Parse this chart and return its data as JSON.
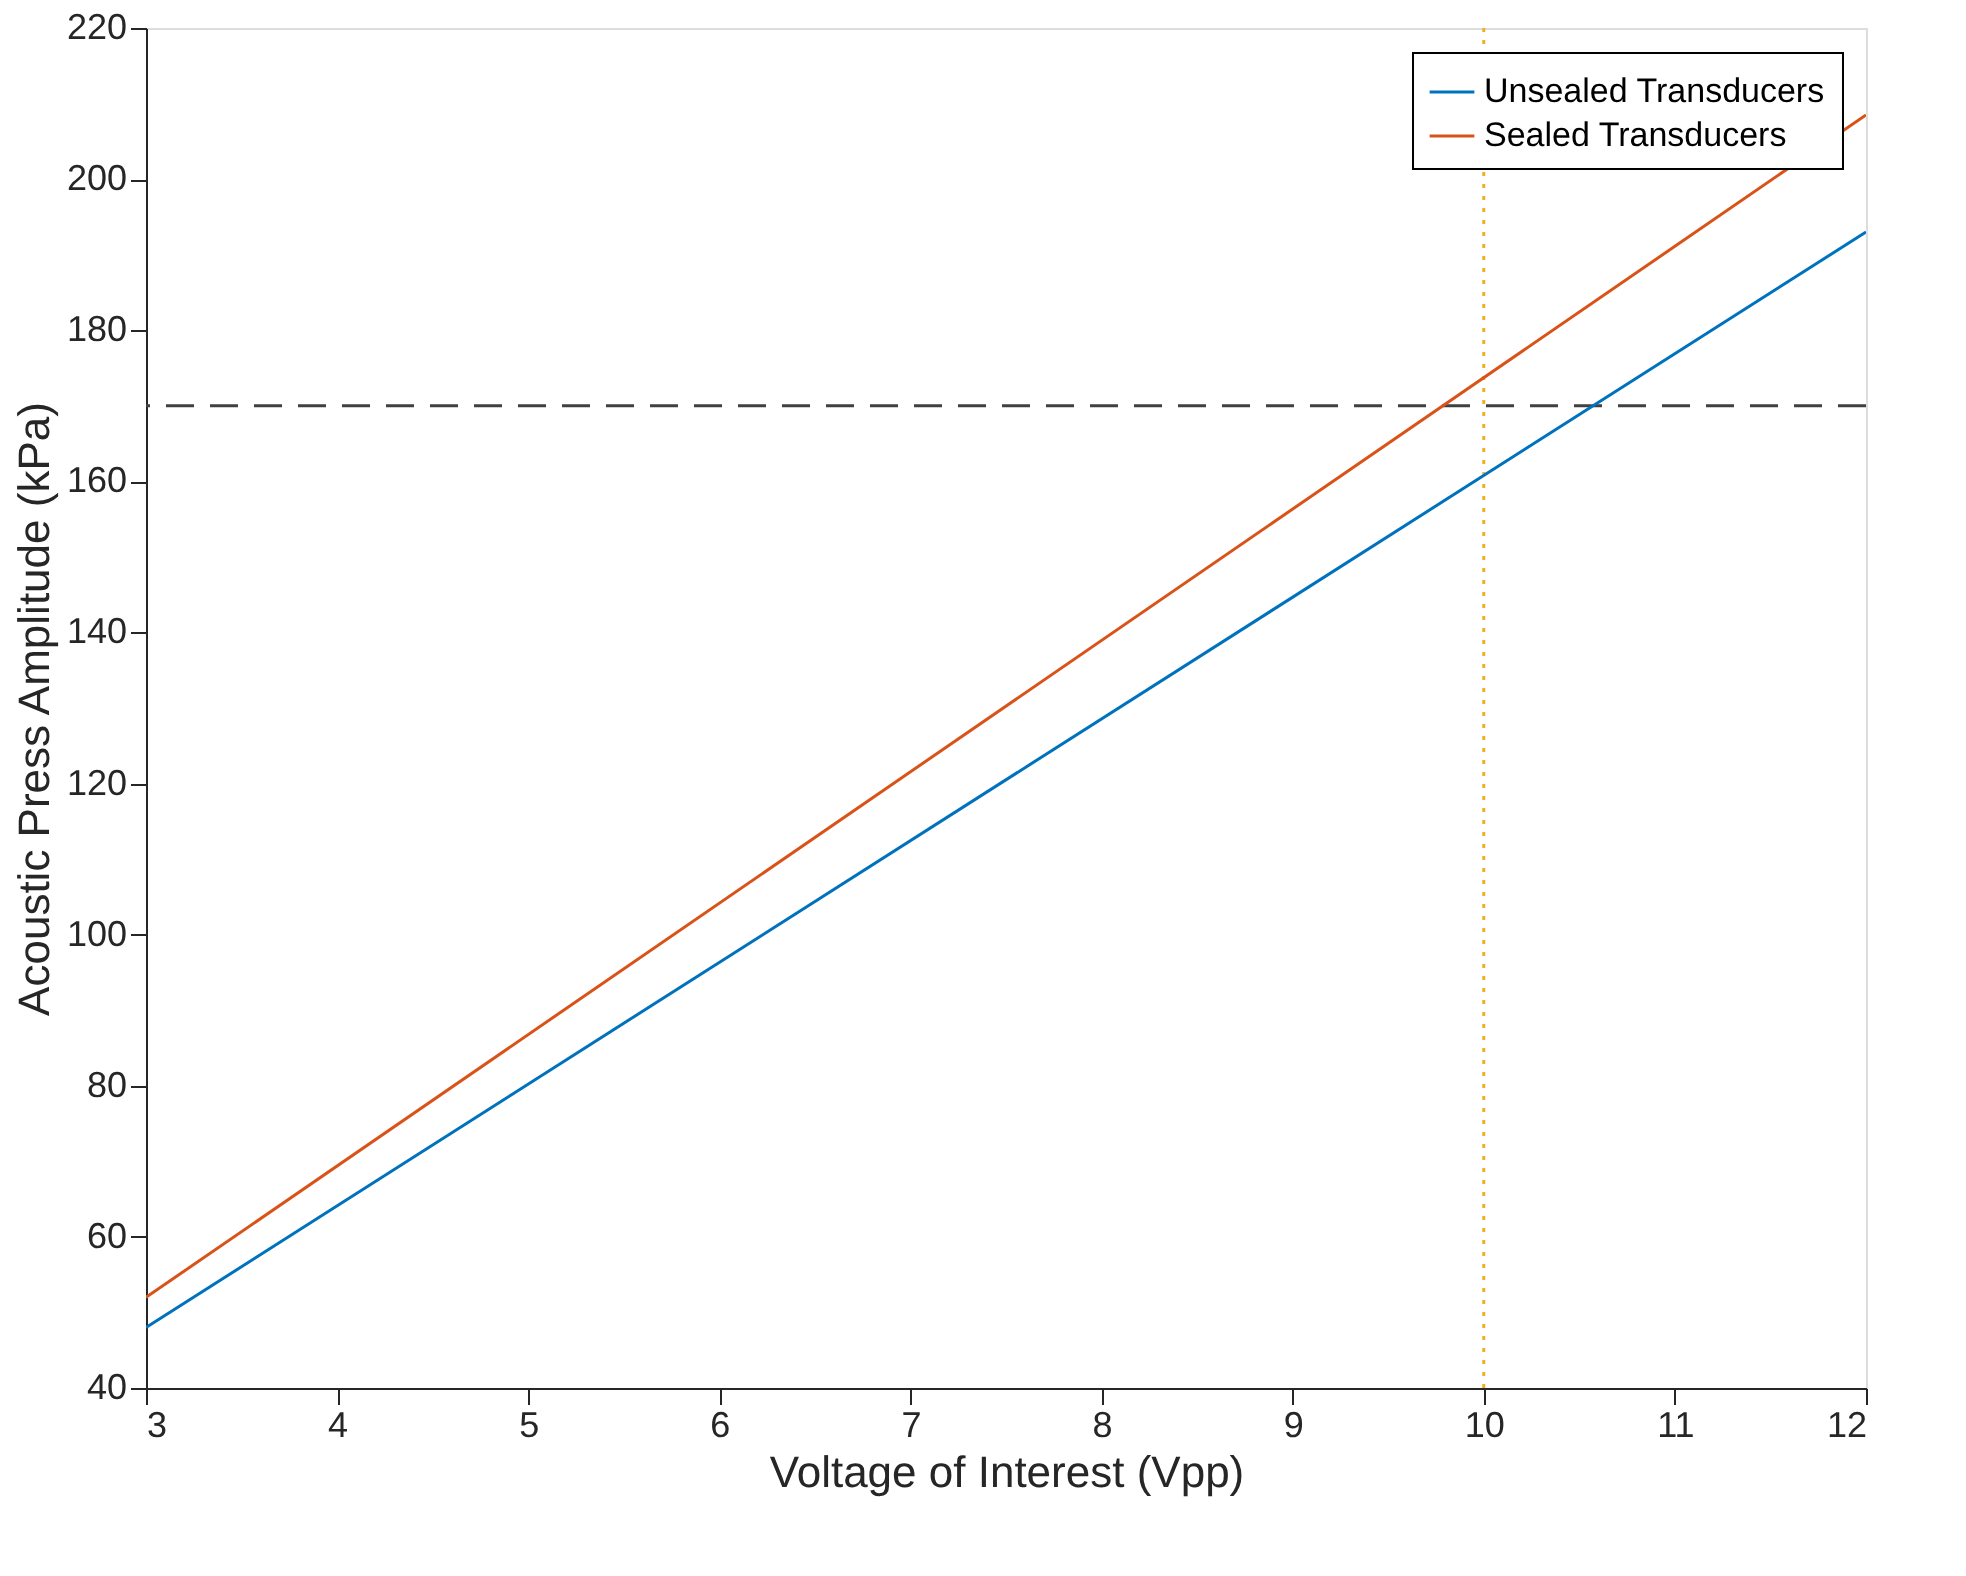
{
  "chart_data": {
    "type": "line",
    "xlabel": "Voltage of Interest (Vpp)",
    "ylabel": "Acoustic Press Amplitude (kPa)",
    "x": [
      3,
      12
    ],
    "series": [
      {
        "name": "Unsealed Transducers",
        "color": "#0072bd",
        "values": [
          48,
          193
        ]
      },
      {
        "name": "Sealed Transducers",
        "color": "#d95319",
        "values": [
          52,
          208.5
        ]
      }
    ],
    "xlim": [
      3,
      12
    ],
    "xticks": [
      3,
      4,
      5,
      6,
      7,
      8,
      9,
      10,
      11,
      12
    ],
    "ylim": [
      40,
      220
    ],
    "yticks": [
      40,
      60,
      80,
      100,
      120,
      140,
      160,
      180,
      200,
      220
    ],
    "ref_lines": [
      {
        "axis": "y",
        "value": 170,
        "color": "#404040",
        "line_style": "dashed"
      },
      {
        "axis": "x",
        "value": 10,
        "color": "#edb120",
        "line_style": "dotted"
      }
    ],
    "grid": false,
    "legend": "top right",
    "marker": "none",
    "line_style": "solid"
  }
}
